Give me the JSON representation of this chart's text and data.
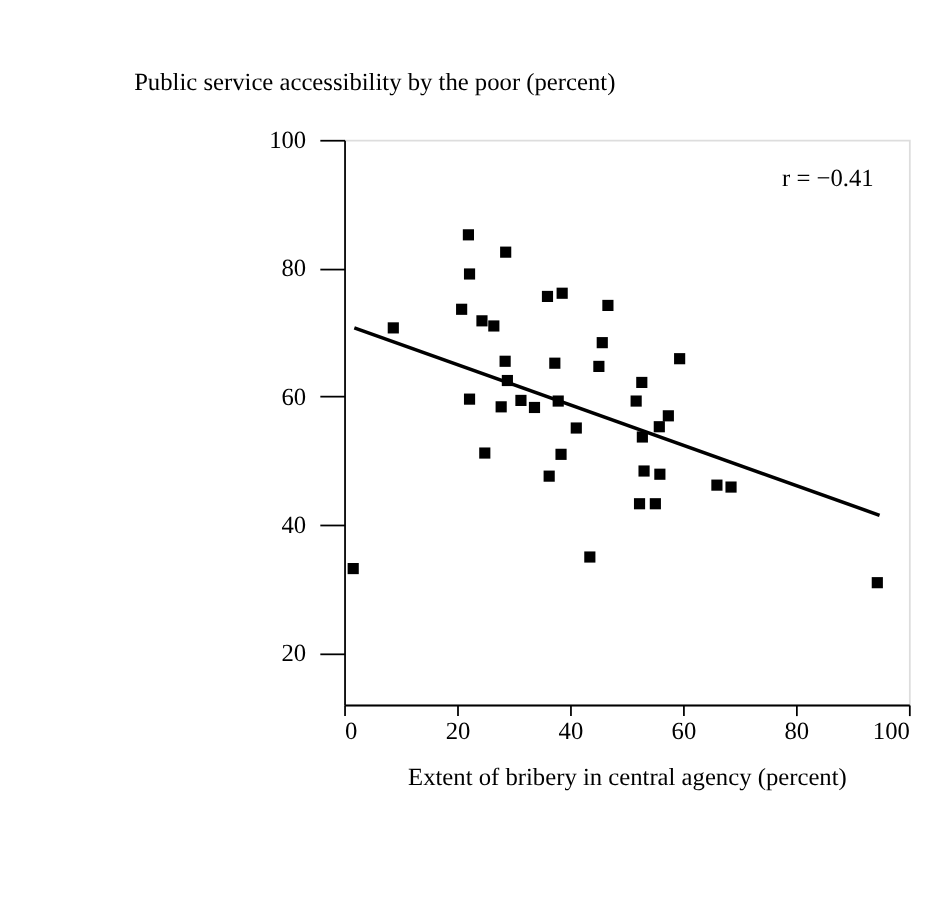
{
  "chart_data": {
    "type": "scatter",
    "ylabel": "Public service accessibility by the poor (percent)",
    "xlabel": "Extent of bribery in central agency (percent)",
    "annotations": [
      "r = −0.41"
    ],
    "xlim": [
      0,
      100
    ],
    "ylim": [
      12,
      100
    ],
    "xticks": [
      0,
      20,
      40,
      60,
      80,
      100
    ],
    "yticks": [
      20,
      40,
      60,
      80,
      100
    ],
    "grid": false,
    "series": [
      {
        "color": "#000000",
        "marker": "square",
        "x": [
          22.0,
          28.6,
          22.2,
          20.8,
          24.4,
          26.5,
          8.7,
          28.5,
          28.9,
          22.2,
          27.8,
          31.3,
          33.7,
          24.9,
          1.6,
          36.0,
          38.6,
          46.7,
          45.7,
          37.3,
          45.1,
          59.4,
          52.7,
          51.7,
          37.9,
          57.4,
          55.8,
          41.1,
          52.8,
          38.4,
          36.3,
          53.1,
          55.9,
          66.0,
          68.5,
          52.3,
          55.1,
          43.5,
          94.4
        ],
        "values": [
          85.2,
          82.5,
          79.1,
          73.6,
          71.8,
          71.0,
          70.7,
          65.5,
          62.5,
          59.6,
          58.4,
          59.4,
          58.3,
          51.2,
          33.2,
          75.6,
          76.1,
          74.2,
          68.4,
          65.2,
          64.7,
          65.9,
          62.2,
          59.3,
          59.3,
          57.0,
          55.3,
          55.1,
          53.7,
          51.0,
          47.6,
          48.4,
          47.9,
          46.2,
          45.9,
          43.3,
          43.3,
          35.0,
          31.0
        ]
      },
      {
        "type": "line",
        "color": "#000000",
        "line_style": "solid",
        "x": [
          1.8,
          94.8
        ],
        "values": [
          70.7,
          41.5
        ]
      }
    ]
  }
}
